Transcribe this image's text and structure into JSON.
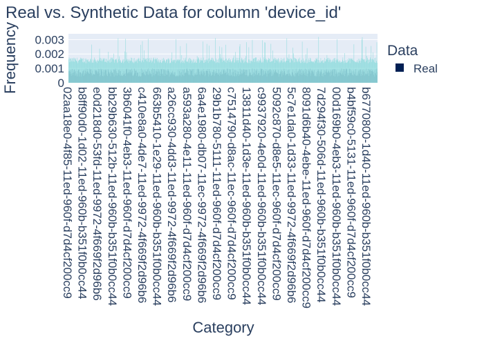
{
  "chart_data": {
    "type": "bar",
    "title": "Real vs. Synthetic Data for column 'device_id'",
    "xlabel": "Category",
    "ylabel": "Frequency",
    "ylim": [
      0,
      0.0034
    ],
    "yticks": [
      {
        "value": 0,
        "label": "0"
      },
      {
        "value": 0.001,
        "label": "0.001"
      },
      {
        "value": 0.002,
        "label": "0.002"
      },
      {
        "value": 0.003,
        "label": "0.003"
      }
    ],
    "legend": {
      "title": "Data",
      "position": "right"
    },
    "x_tick_labels": [
      "02aa18e0-4f85-11ed-960f-d7d4cf200cc9",
      "b8ff90d0-1d02-11ed-960b-b351f0b0cc44",
      "e0d218d0-53fd-11ed-9972-4f669f2d96b6",
      "bb29b630-512b-11ed-960b-b351f0b0cc44",
      "3b6041f0-4eb3-11ed-960f-d7d4cf200cc9",
      "c410e8a0-4de7-11ed-9972-4f669f2d96b6",
      "663b5410-1e29-11ed-960b-b351f0b0cc44",
      "a26cc930-4dd3-11ed-9972-4f669f2d96b6",
      "a593a280-4e11-11ed-960f-d7d4cf200cc9",
      "6a4e1980-db07-11ec-9972-4f669f2d96b6",
      "29b1b780-5111-11ed-960f-d7d4cf200cc9",
      "c7514790-d8ac-11ec-960f-d7d4cf200cc9",
      "13811d40-1d3e-11ed-960b-b351f0b0cc44",
      "c9937920-4e0d-11ed-960b-b351f0b0cc44",
      "5092c870-d8e5-11ec-960f-d7d4cf200cc9",
      "5c7e1da0-1d33-11ed-9972-4f669f2d96b6",
      "8091d6b40-4ebe-11ed-960f-d7d4cf200cc9",
      "7d294f30-506d-11ed-960b-b351f0b0cc44",
      "00d169b0-4eb3-11ed-960b-b351f0b0cc44",
      "b4bf59c0-5131-11ed-960f-d7d4cf200cc9",
      "b6770800-1d40-11ed-960b-b351f0b0cc44"
    ],
    "series": [
      {
        "name": "Real",
        "color": "#001f54",
        "typical_value": 0.00072
      },
      {
        "color": "#7fd8d8",
        "typical_value": 0.0016
      }
    ],
    "category_count_estimate": 700
  }
}
